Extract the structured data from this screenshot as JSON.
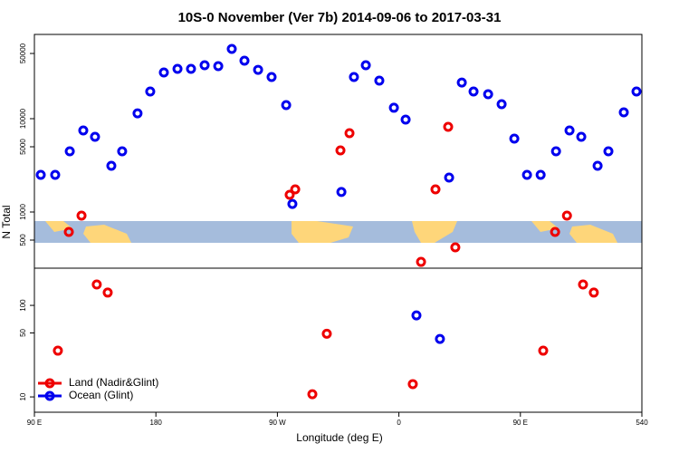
{
  "chart_data": [
    {
      "type": "scatter",
      "title": "10S-0 November (Ver 7b)   2014-09-06 to 2017-03-31",
      "x_label": "Longitude (deg E)",
      "y_label": "N Total",
      "log_y": true,
      "xlim": [
        90,
        540
      ],
      "ylim": [
        250,
        80000
      ],
      "yticks": [
        500,
        1000,
        5000,
        10000,
        50000
      ],
      "series": [
        {
          "name": "Ocean (Glint)",
          "color": "#0000ee",
          "x": [
            94.7,
            105.4,
            116.2,
            126.2,
            134.9,
            147,
            155,
            166.4,
            175.8,
            185.9,
            196,
            206,
            216.1,
            226.2,
            236.2,
            245.6,
            255.7,
            265.7,
            276.5,
            281.1,
            317.4,
            326.7,
            335.5,
            345.5,
            356.3,
            365,
            397.2,
            406.6,
            415.3,
            426.1,
            436.1,
            445.5,
            454.9,
            465,
            476.4,
            486.4,
            495.1,
            507.2,
            515.2,
            526.6,
            536
          ],
          "values": [
            2500,
            2500,
            4470,
            7480,
            6400,
            3130,
            4470,
            11400,
            19550,
            31300,
            34200,
            34200,
            37400,
            36600,
            55900,
            41800,
            33400,
            28000,
            14000,
            1220,
            1640,
            28000,
            37400,
            25600,
            13100,
            9780,
            2340,
            24400,
            19550,
            18300,
            14300,
            6110,
            2500,
            2500,
            4470,
            7480,
            6400,
            3130,
            4470,
            11700,
            19550
          ]
        },
        {
          "name": "Land (Nadir&Glint)",
          "color": "#ee0000",
          "x": [
            115.5,
            124.9,
            279.1,
            283.2,
            316.7,
            323.4,
            376.4,
            387.1,
            396.5,
            401.8,
            475.7,
            484.5
          ],
          "values": [
            611,
            914,
            1530,
            1750,
            4570,
            7000,
            292,
            1750,
            8180,
            418,
            611,
            914
          ]
        }
      ]
    },
    {
      "type": "scatter",
      "log_y": true,
      "legend": "lower left",
      "xlim": [
        90,
        540
      ],
      "ylim": [
        6.8,
        255
      ],
      "yticks": [
        10,
        50,
        100
      ],
      "xticks": [
        {
          "value": 90,
          "label": "90 E"
        },
        180,
        {
          "value": 270,
          "label": "90 W"
        },
        {
          "value": 360,
          "label": "0"
        },
        {
          "value": 450,
          "label": "90 E"
        },
        540
      ],
      "series": [
        {
          "name": "Land (Nadir&Glint)",
          "color": "#ee0000",
          "x": [
            107.4,
            136.2,
            144.3,
            295.9,
            306.6,
            370.3,
            466.9,
            496.4,
            504.4
          ],
          "values": [
            32,
            169,
            138,
            10.7,
            49,
            13.8,
            32,
            169,
            138
          ]
        },
        {
          "name": "Ocean (Glint)",
          "color": "#0000ee",
          "x": [
            373,
            390.4
          ],
          "values": [
            77.8,
            43
          ]
        }
      ]
    }
  ]
}
